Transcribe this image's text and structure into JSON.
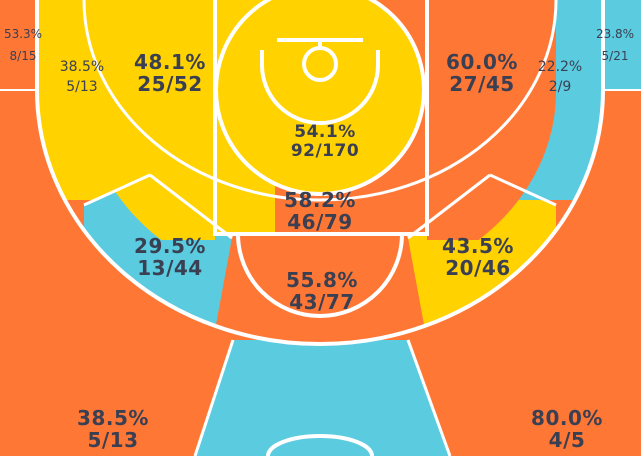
{
  "colors": {
    "hot": "#ff7735",
    "average": "#ffd200",
    "cold": "#5bcbe0",
    "lines": "#ffffff",
    "text": "#3a3f52"
  },
  "zones": [
    {
      "id": "left-corner-three",
      "pct": "53.3%",
      "frac": "8/15",
      "color": "hot"
    },
    {
      "id": "left-wing-long-two",
      "pct": "38.5%",
      "frac": "5/13",
      "color": "average"
    },
    {
      "id": "left-baseline-mid",
      "pct": "48.1%",
      "frac": "25/52",
      "color": "average"
    },
    {
      "id": "restricted-area",
      "pct": "54.1%",
      "frac": "92/170",
      "color": "average"
    },
    {
      "id": "right-baseline-mid",
      "pct": "60.0%",
      "frac": "27/45",
      "color": "hot"
    },
    {
      "id": "right-wing-long-two",
      "pct": "22.2%",
      "frac": "2/9",
      "color": "cold"
    },
    {
      "id": "right-corner-three",
      "pct": "23.8%",
      "frac": "5/21",
      "color": "cold"
    },
    {
      "id": "paint-non-ra",
      "pct": "58.2%",
      "frac": "46/79",
      "color": "hot"
    },
    {
      "id": "left-elbow-mid",
      "pct": "29.5%",
      "frac": "13/44",
      "color": "cold"
    },
    {
      "id": "right-elbow-mid",
      "pct": "43.5%",
      "frac": "20/46",
      "color": "average"
    },
    {
      "id": "top-key-mid",
      "pct": "55.8%",
      "frac": "43/77",
      "color": "hot"
    },
    {
      "id": "left-wing-three",
      "pct": "38.5%",
      "frac": "5/13",
      "color": "hot"
    },
    {
      "id": "right-wing-three",
      "pct": "80.0%",
      "frac": "4/5",
      "color": "hot"
    },
    {
      "id": "top-three",
      "pct": "",
      "frac": "",
      "color": "cold"
    }
  ]
}
